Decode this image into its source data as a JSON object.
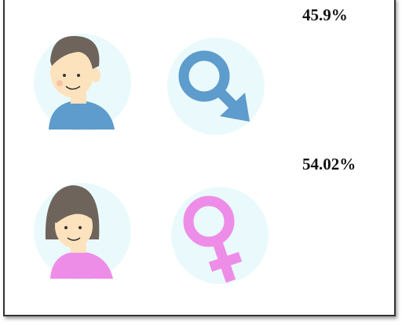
{
  "items": [
    {
      "percent": "45.9%"
    },
    {
      "percent": "54.02%"
    }
  ]
}
